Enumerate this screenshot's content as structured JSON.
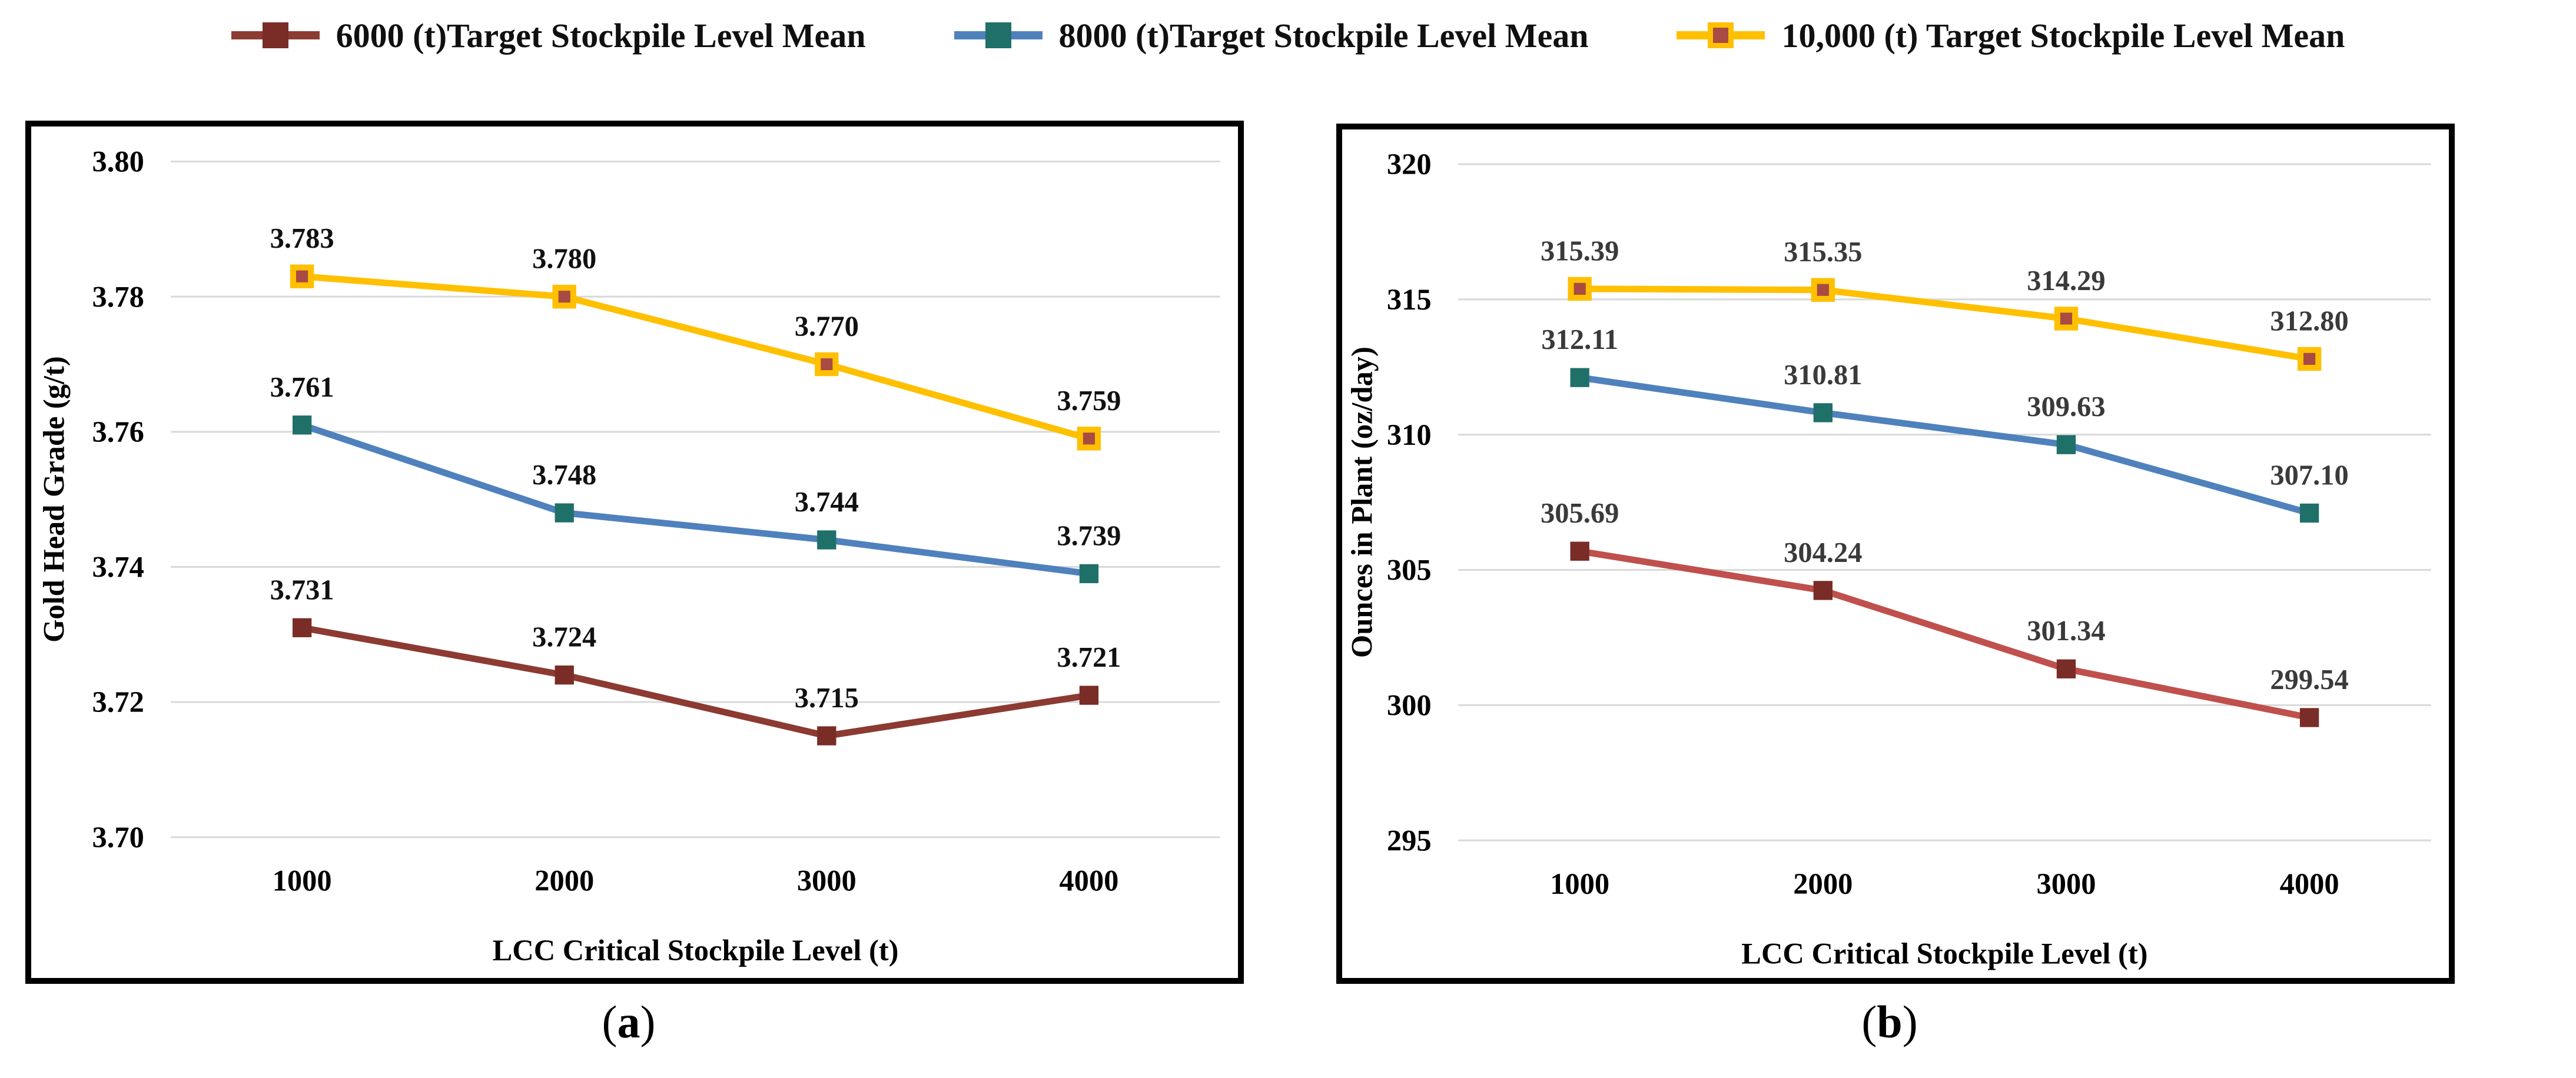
{
  "legend": {
    "items": [
      {
        "label": "6000 (t)Target Stockpile Level Mean",
        "line_color": "#8C3A32",
        "marker_color": "#7A2C26",
        "marker_border": "#7A2C26"
      },
      {
        "label": "8000 (t)Target Stockpile Level Mean",
        "line_color": "#4F81BD",
        "marker_color": "#1F7068",
        "marker_border": "#1F7068"
      },
      {
        "label": "10,000 (t) Target Stockpile Level Mean",
        "line_color": "#FFC000",
        "marker_color": "#A94A44",
        "marker_border": "#FFC000"
      }
    ]
  },
  "colors": {
    "gridline": "#D9D9D9",
    "panel_border": "#000000",
    "background": "#FFFFFF"
  },
  "chart_data": [
    {
      "id": "a",
      "type": "line",
      "caption": {
        "open": "(",
        "letter": "a",
        "close": ")"
      },
      "xlabel": "LCC Critical Stockpile Level (t)",
      "ylabel": "Gold Head Grade (g/t)",
      "categories": [
        "1000",
        "2000",
        "3000",
        "4000"
      ],
      "y_ticks": [
        "3.80",
        "3.78",
        "3.76",
        "3.74",
        "3.72",
        "3.70"
      ],
      "ylim": [
        3.7,
        3.8
      ],
      "grid": true,
      "legend_position": "top",
      "label_color": "#111111",
      "series": [
        {
          "id": "6000",
          "name": "6000 (t)Target Stockpile Level Mean",
          "values": [
            3.731,
            3.724,
            3.715,
            3.721
          ],
          "labels": [
            "3.731",
            "3.724",
            "3.715",
            "3.721"
          ],
          "line_color": "#8C3A32",
          "marker_color": "#7A2C26",
          "marker_border": "#7A2C26"
        },
        {
          "id": "8000",
          "name": "8000 (t)Target Stockpile Level Mean",
          "values": [
            3.761,
            3.748,
            3.744,
            3.739
          ],
          "labels": [
            "3.761",
            "3.748",
            "3.744",
            "3.739"
          ],
          "line_color": "#4F81BD",
          "marker_color": "#1F7068",
          "marker_border": "#1F7068"
        },
        {
          "id": "10000",
          "name": "10,000 (t) Target Stockpile Level Mean",
          "values": [
            3.783,
            3.78,
            3.77,
            3.759
          ],
          "labels": [
            "3.783",
            "3.780",
            "3.770",
            "3.759"
          ],
          "line_color": "#FFC000",
          "marker_color": "#A94A44",
          "marker_border": "#FFC000"
        }
      ]
    },
    {
      "id": "b",
      "type": "line",
      "caption": {
        "open": "(",
        "letter": "b",
        "close": ")"
      },
      "xlabel": "LCC Critical Stockpile Level (t)",
      "ylabel": "Ounces in Plant (oz/day)",
      "categories": [
        "1000",
        "2000",
        "3000",
        "4000"
      ],
      "y_ticks": [
        "320",
        "315",
        "310",
        "305",
        "300",
        "295"
      ],
      "ylim": [
        295,
        320
      ],
      "grid": true,
      "legend_position": "top",
      "label_color": "#3A3A3A",
      "series": [
        {
          "id": "6000",
          "name": "6000 (t)Target Stockpile Level Mean",
          "values": [
            305.69,
            304.24,
            301.34,
            299.54
          ],
          "labels": [
            "305.69",
            "304.24",
            "301.34",
            "299.54"
          ],
          "line_color": "#C0504D",
          "marker_color": "#7A2C26",
          "marker_border": "#7A2C26"
        },
        {
          "id": "8000",
          "name": "8000 (t)Target Stockpile Level Mean",
          "values": [
            312.11,
            310.81,
            309.63,
            307.1
          ],
          "labels": [
            "312.11",
            "310.81",
            "309.63",
            "307.10"
          ],
          "line_color": "#4F81BD",
          "marker_color": "#1F7068",
          "marker_border": "#1F7068"
        },
        {
          "id": "10000",
          "name": "10,000 (t) Target Stockpile Level Mean",
          "values": [
            315.39,
            315.35,
            314.29,
            312.8
          ],
          "labels": [
            "315.39",
            "315.35",
            "314.29",
            "312.80"
          ],
          "line_color": "#FFC000",
          "marker_color": "#A94A44",
          "marker_border": "#FFC000"
        }
      ]
    }
  ]
}
